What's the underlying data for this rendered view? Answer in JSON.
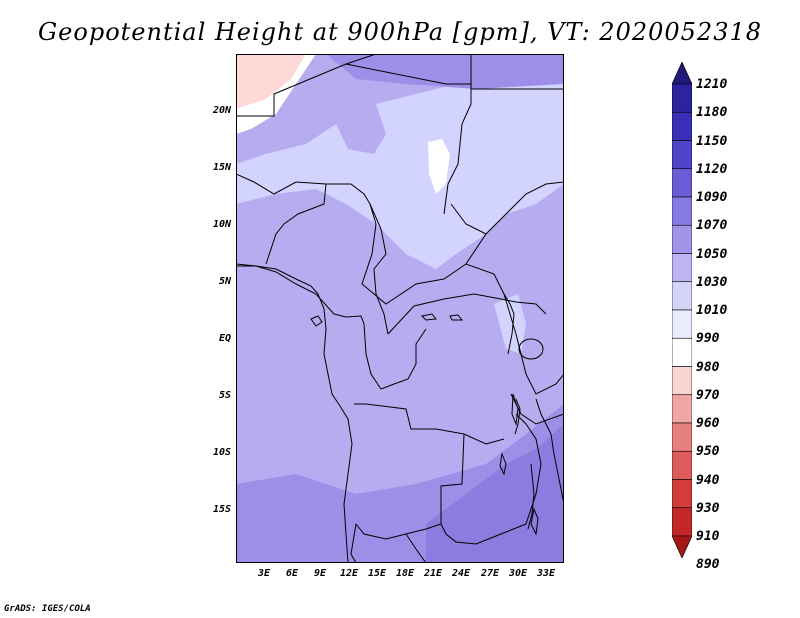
{
  "title": "Geopotential Height at 900hPa [gpm], VT: 2020052318",
  "credit": "GrADS: IGES/COLA",
  "map": {
    "lat_labels": [
      "20N",
      "15N",
      "10N",
      "5N",
      "EQ",
      "5S",
      "10S",
      "15S"
    ],
    "lon_labels": [
      "3E",
      "6E",
      "9E",
      "12E",
      "15E",
      "18E",
      "21E",
      "24E",
      "27E",
      "30E",
      "33E"
    ],
    "background_color": "#b7acef",
    "field_colors": {
      "very_light": "#e6e6ff",
      "light": "#d3d3ff",
      "mid": "#b7acef",
      "dark": "#9d8fe8",
      "darker": "#8a7ddf",
      "white": "#ffffff",
      "pink": "#ffd8d8",
      "border": "#000000"
    }
  },
  "colorbar": {
    "levels": [
      "1210",
      "1180",
      "1150",
      "1120",
      "1090",
      "1070",
      "1050",
      "1030",
      "1010",
      "990",
      "980",
      "970",
      "960",
      "950",
      "940",
      "930",
      "910",
      "890"
    ],
    "colors": [
      "#221a7a",
      "#2c249e",
      "#3a2fb7",
      "#4f43c8",
      "#6a5dd7",
      "#857ae2",
      "#a094ea",
      "#bdb5f2",
      "#d6d3f8",
      "#ececff",
      "#ffffff",
      "#fcd3d3",
      "#f2a5a5",
      "#e87f7f",
      "#df5c5c",
      "#d43b3b",
      "#c42727",
      "#a51616"
    ]
  }
}
